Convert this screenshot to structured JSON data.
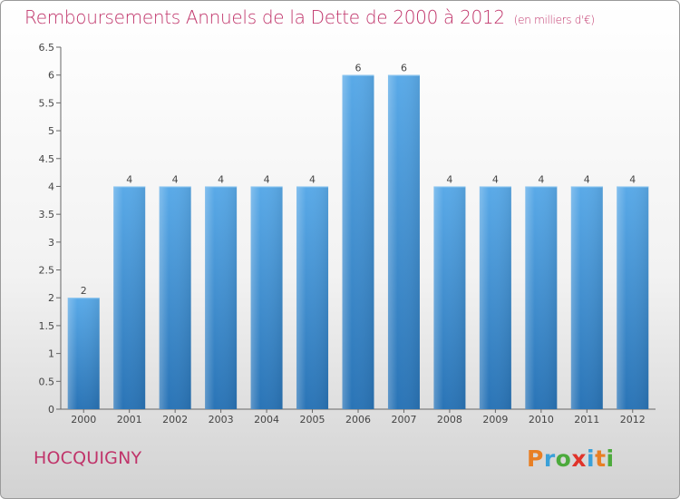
{
  "header": {
    "title": "Remboursements Annuels de la Dette de 2000 à 2012",
    "unit": "(en milliers d'€)"
  },
  "footer": {
    "commune": "HOCQUIGNY",
    "logo_text": "Proxiti",
    "logo_colors": [
      "#e87f24",
      "#3aa0d8",
      "#4caa3c",
      "#e0332a",
      "#3aa0d8",
      "#e87f24",
      "#4caa3c"
    ]
  },
  "colors": {
    "bar": "#4a9be0",
    "bar_dark": "#2b75b8",
    "title": "#c0346a"
  },
  "chart_data": {
    "type": "bar",
    "categories": [
      "2000",
      "2001",
      "2002",
      "2003",
      "2004",
      "2005",
      "2006",
      "2007",
      "2008",
      "2009",
      "2010",
      "2011",
      "2012"
    ],
    "values": [
      2,
      4,
      4,
      4,
      4,
      4,
      6,
      6,
      4,
      4,
      4,
      4,
      4
    ],
    "data_labels": [
      "2",
      "4",
      "4",
      "4",
      "4",
      "4",
      "6",
      "6",
      "4",
      "4",
      "4",
      "4",
      "4"
    ],
    "y_ticks": [
      "0",
      "0.5",
      "1",
      "1.5",
      "2",
      "2.5",
      "3",
      "3.5",
      "4",
      "4.5",
      "5",
      "5.5",
      "6",
      "6.5"
    ],
    "ylim": [
      0,
      6.5
    ],
    "grid": false,
    "title": "Remboursements Annuels de la Dette de 2000 à 2012"
  }
}
